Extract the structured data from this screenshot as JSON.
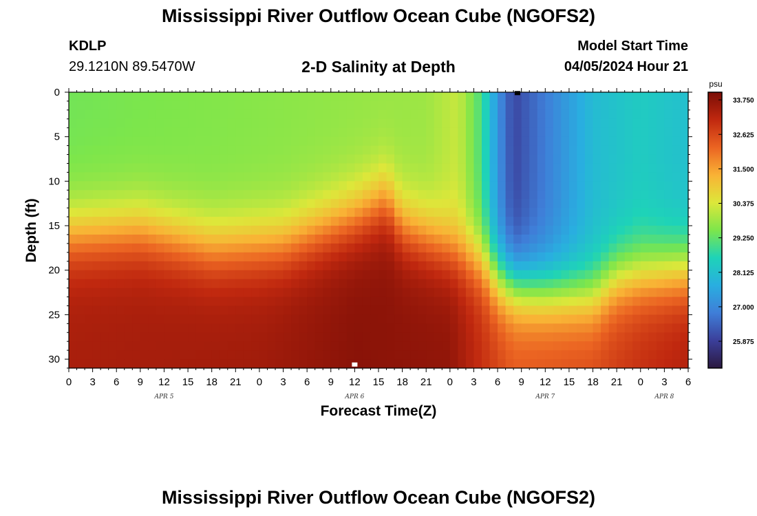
{
  "header": {
    "title": "Mississippi River Outflow Ocean Cube (NGOFS2)",
    "station_id": "KDLP",
    "station_coords": "29.1210N  89.5470W",
    "subtitle": "2-D Salinity at Depth",
    "model_start_label": "Model Start Time",
    "model_start_value": "04/05/2024 Hour 21"
  },
  "footer": {
    "title": "Mississippi River Outflow Ocean Cube (NGOFS2)"
  },
  "chart_data": {
    "type": "heatmap",
    "xlabel": "Forecast Time(Z)",
    "ylabel": "Depth (ft)",
    "x_unit": "hours from 00Z Apr 5",
    "x_range": [
      0,
      78
    ],
    "ylim": [
      0,
      31
    ],
    "y_inverted": true,
    "x_tick_values": [
      0,
      3,
      6,
      9,
      12,
      15,
      18,
      21,
      24,
      27,
      30,
      33,
      36,
      39,
      42,
      45,
      48,
      51,
      54,
      57,
      60,
      63,
      66,
      69,
      72,
      75,
      78
    ],
    "x_tick_labels": [
      "0",
      "3",
      "6",
      "9",
      "12",
      "15",
      "18",
      "21",
      "0",
      "3",
      "6",
      "9",
      "12",
      "15",
      "18",
      "21",
      "0",
      "3",
      "6",
      "9",
      "12",
      "15",
      "18",
      "21",
      "0",
      "3",
      "6"
    ],
    "date_labels": [
      {
        "x": 12,
        "label": "APR 5"
      },
      {
        "x": 36,
        "label": "APR 6"
      },
      {
        "x": 60,
        "label": "APR 7"
      },
      {
        "x": 75,
        "label": "APR 8"
      }
    ],
    "y_tick_values": [
      0,
      5,
      10,
      15,
      20,
      25,
      30
    ],
    "y_tick_labels": [
      "0",
      "5",
      "10",
      "15",
      "20",
      "25",
      "30"
    ],
    "colorbar": {
      "unit": "psu",
      "min": 25.0,
      "max": 34.0,
      "tick_values": [
        33.75,
        32.625,
        31.5,
        30.375,
        29.25,
        28.125,
        27.0,
        25.875
      ],
      "tick_labels": [
        "33.750",
        "32.625",
        "31.500",
        "30.375",
        "29.250",
        "28.125",
        "27.000",
        "25.875"
      ],
      "palette": [
        "#2b1940",
        "#3b3f9a",
        "#3f7ed8",
        "#29aee0",
        "#1ed3b8",
        "#7de64b",
        "#dde73a",
        "#f9b235",
        "#eb6422",
        "#c0280f",
        "#7a0d06"
      ]
    },
    "halocline_depth": [
      {
        "x": 0,
        "y": 16
      },
      {
        "x": 9,
        "y": 15.5
      },
      {
        "x": 18,
        "y": 17.5
      },
      {
        "x": 27,
        "y": 17
      },
      {
        "x": 36,
        "y": 14
      },
      {
        "x": 40,
        "y": 12
      },
      {
        "x": 42,
        "y": 15
      },
      {
        "x": 48,
        "y": 17.5
      },
      {
        "x": 52,
        "y": 19
      },
      {
        "x": 54,
        "y": 21
      },
      {
        "x": 57,
        "y": 22
      },
      {
        "x": 60,
        "y": 22.5
      },
      {
        "x": 66,
        "y": 23
      },
      {
        "x": 69,
        "y": 21
      },
      {
        "x": 72,
        "y": 20.5
      },
      {
        "x": 78,
        "y": 20
      }
    ],
    "surface_salinity": [
      {
        "x": 0,
        "y": 29.4
      },
      {
        "x": 24,
        "y": 29.6
      },
      {
        "x": 45,
        "y": 29.8
      },
      {
        "x": 49,
        "y": 30.2
      },
      {
        "x": 52,
        "y": 29.0
      },
      {
        "x": 54,
        "y": 27.2
      },
      {
        "x": 56,
        "y": 26.0
      },
      {
        "x": 60,
        "y": 26.8
      },
      {
        "x": 66,
        "y": 28.0
      },
      {
        "x": 72,
        "y": 28.4
      },
      {
        "x": 78,
        "y": 28.1
      }
    ],
    "bottom_salinity": [
      {
        "x": 0,
        "y": 33.4
      },
      {
        "x": 24,
        "y": 33.5
      },
      {
        "x": 36,
        "y": 33.8
      },
      {
        "x": 48,
        "y": 33.7
      },
      {
        "x": 52,
        "y": 33.0
      },
      {
        "x": 56,
        "y": 32.4
      },
      {
        "x": 66,
        "y": 32.6
      },
      {
        "x": 72,
        "y": 33.0
      },
      {
        "x": 78,
        "y": 33.3
      }
    ],
    "markers": [
      {
        "x": 56.5,
        "y": 0.1,
        "color": "#000000"
      },
      {
        "x": 36,
        "y": 30.6,
        "color": "#ffffff"
      }
    ]
  }
}
